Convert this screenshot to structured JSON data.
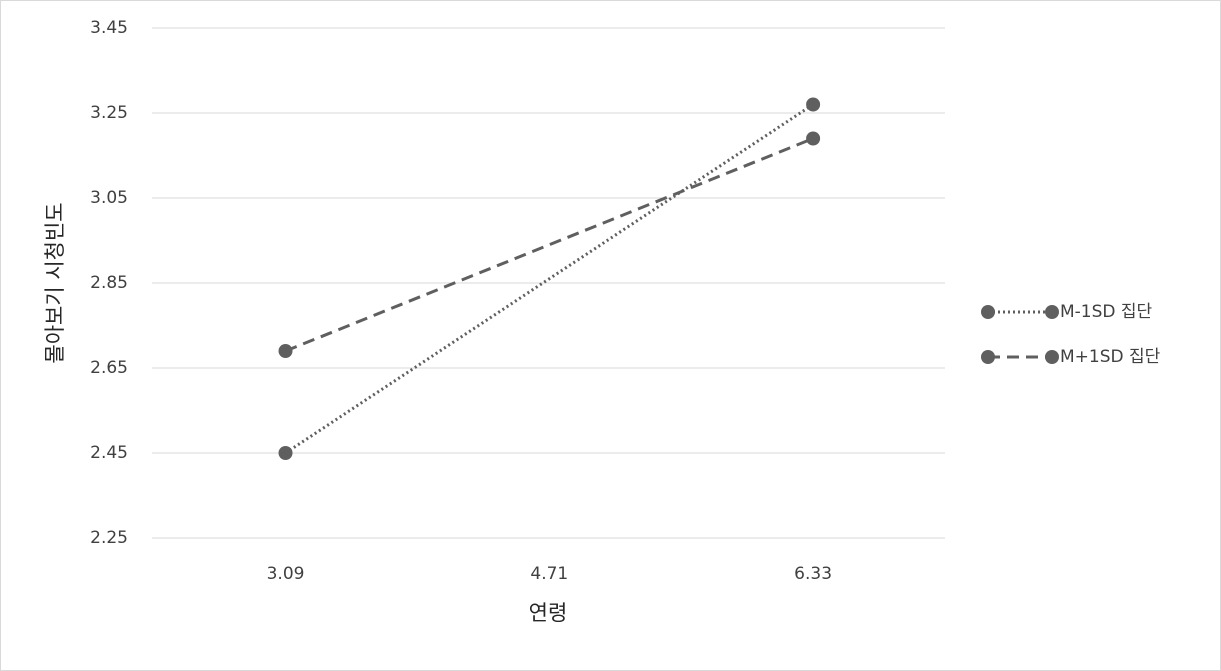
{
  "chart_data": {
    "type": "line",
    "x_label": "연령",
    "y_label": "몰아보기 시청빈도",
    "x": [
      3.09,
      6.33
    ],
    "xlim": [
      2.27,
      7.14
    ],
    "xticks": [
      3.09,
      4.71,
      6.33
    ],
    "ylim": [
      2.25,
      3.45
    ],
    "yticks": [
      2.25,
      2.45,
      2.65,
      2.85,
      3.05,
      3.25,
      3.45
    ],
    "grid": true,
    "legend": "right",
    "series": [
      {
        "name": "M-1SD 집단",
        "color": "#5f5f5f",
        "dash": "dotted",
        "values": [
          2.45,
          3.27
        ]
      },
      {
        "name": "M+1SD 집단",
        "color": "#5f5f5f",
        "dash": "dashed",
        "values": [
          2.69,
          3.19
        ]
      }
    ]
  }
}
